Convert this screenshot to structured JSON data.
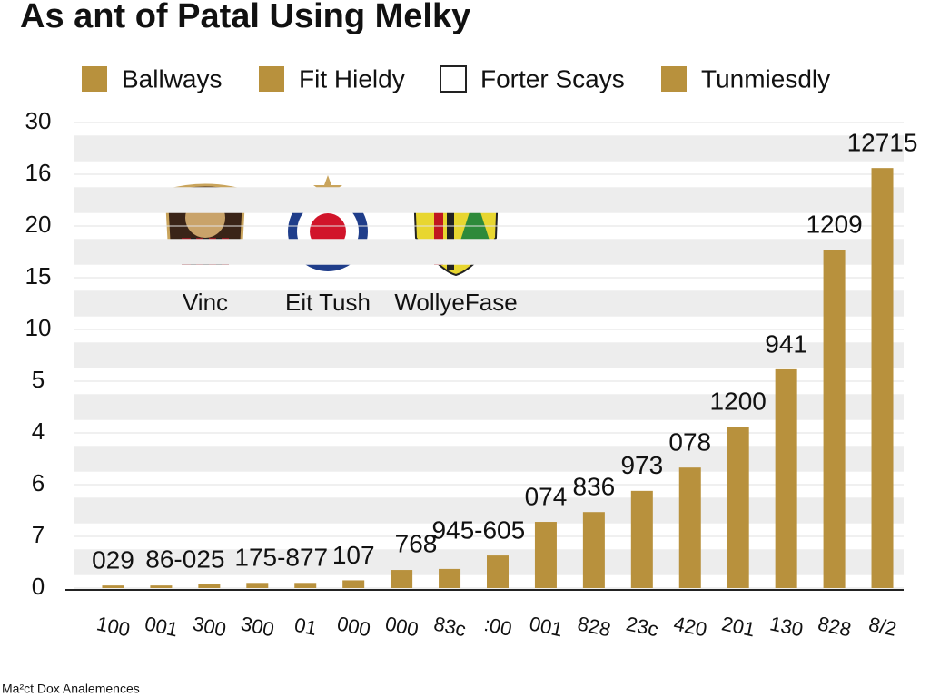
{
  "chart_data": {
    "type": "bar",
    "title": "As ant of Patal Using Melky",
    "footnote": "Ma²ct Dox Analemences",
    "legend": [
      {
        "name": "Ballways",
        "color": "#b8913d"
      },
      {
        "name": "Fit Hieldy",
        "color": "#b8913d"
      },
      {
        "name": "Forter Scays",
        "color": "#ffffff"
      },
      {
        "name": "Tunmiesdly",
        "color": "#b8913d"
      }
    ],
    "logos": [
      "Vinc",
      "Eit Tush",
      "WollyeFase"
    ],
    "categories": [
      "100",
      "001",
      "300",
      "300",
      "01",
      "000",
      "000",
      "83c",
      ":00",
      "001",
      "828",
      "23c",
      "420",
      "201",
      "130",
      "828",
      "8/2"
    ],
    "values": [
      0.05,
      0.05,
      0.07,
      0.1,
      0.1,
      0.15,
      0.35,
      0.37,
      0.63,
      1.28,
      1.47,
      1.88,
      2.33,
      3.12,
      4.23,
      6.54,
      8.12
    ],
    "color": "#b8913d",
    "annotations": [
      "029",
      "86-025",
      "175-877",
      "107",
      "768",
      "945-605",
      "074",
      "836",
      "973",
      "078",
      "1200",
      "941",
      "1209",
      "12715"
    ],
    "ylim": [
      0,
      9
    ],
    "yticks": [
      {
        "value": 0,
        "label": "0"
      },
      {
        "value": 1,
        "label": "7"
      },
      {
        "value": 2,
        "label": "6"
      },
      {
        "value": 3,
        "label": "4"
      },
      {
        "value": 4,
        "label": "5"
      },
      {
        "value": 5,
        "label": "10"
      },
      {
        "value": 6,
        "label": "15"
      },
      {
        "value": 7,
        "label": "20"
      },
      {
        "value": 8,
        "label": "16"
      },
      {
        "value": 9,
        "label": "30"
      }
    ],
    "grid": true
  }
}
